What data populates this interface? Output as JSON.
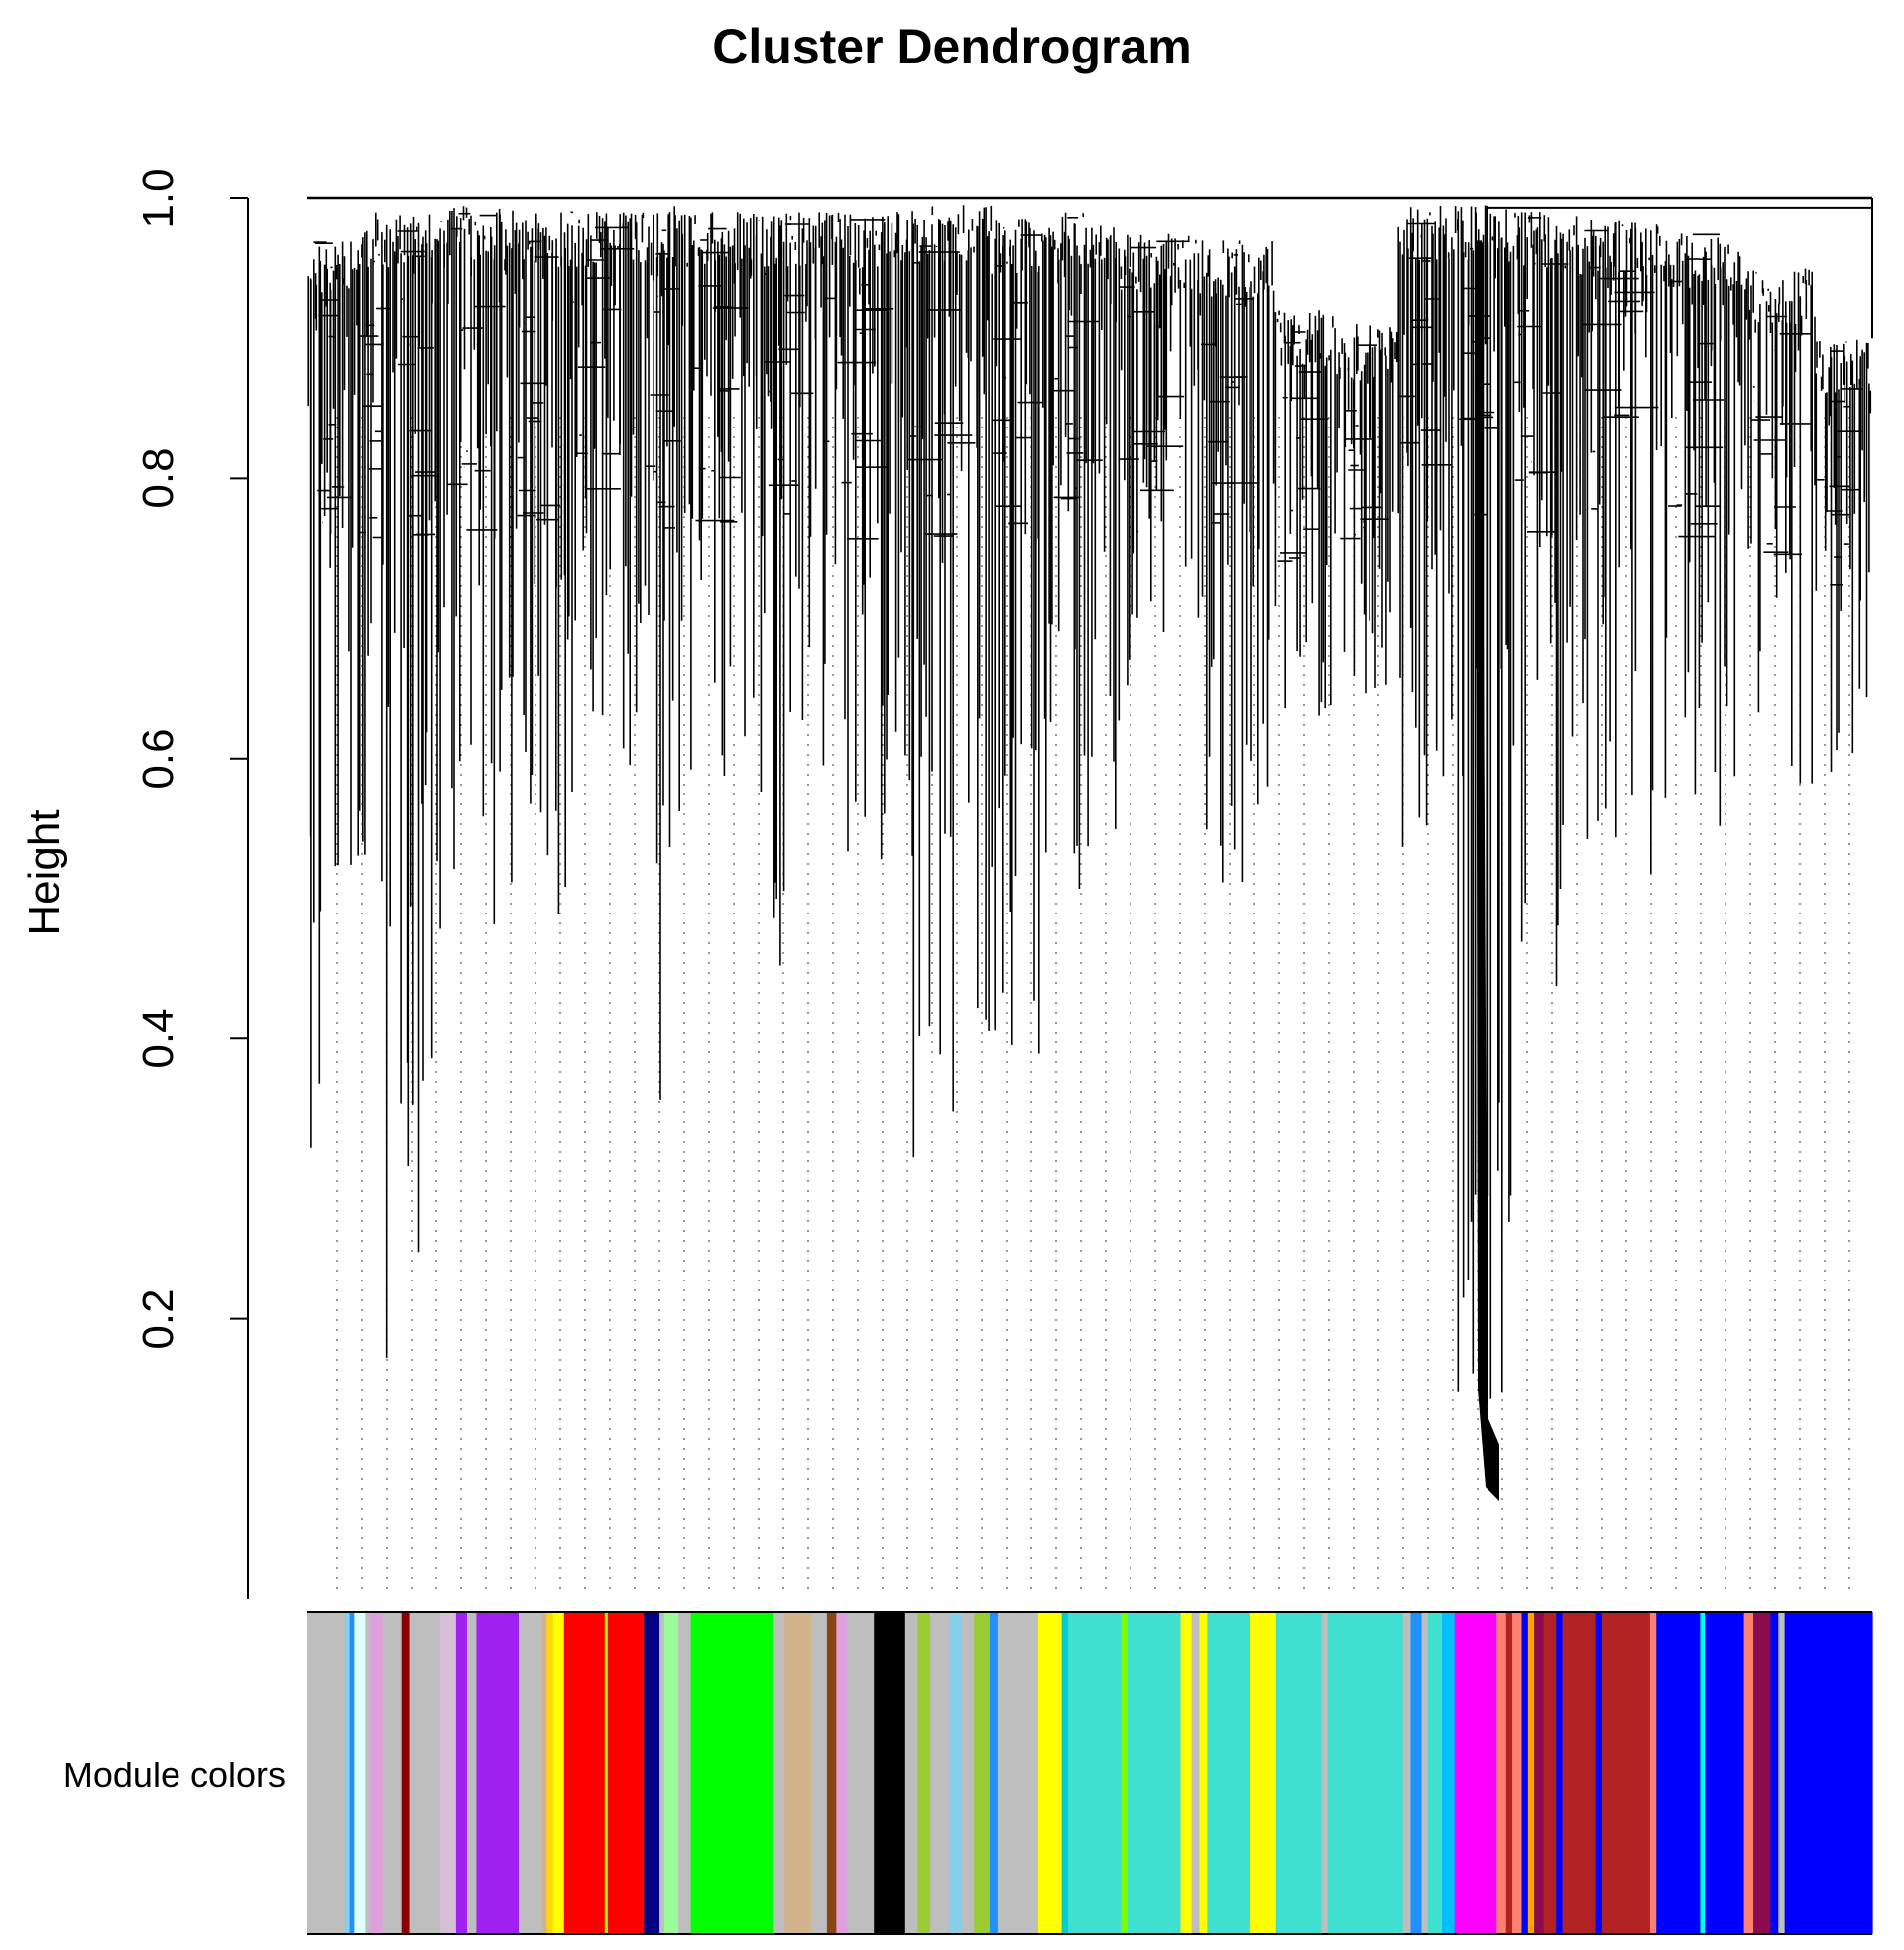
{
  "chart_data": {
    "type": "dendrogram",
    "title": "Cluster Dendrogram",
    "ylabel": "Height",
    "xlabel": "",
    "ylim": [
      0.0,
      1.0
    ],
    "yticks": [
      0.2,
      0.4,
      0.6,
      0.8,
      1.0
    ],
    "ytick_labels": [
      "0.2",
      "0.4",
      "0.6",
      "0.8",
      "1.0"
    ],
    "grid": false,
    "color_bar_label": "Module colors",
    "module_color_bands": [
      {
        "color": "#bebebe",
        "from": 0.0,
        "to": 0.024
      },
      {
        "color": "#87ceeb",
        "from": 0.024,
        "to": 0.027
      },
      {
        "color": "#1e90ff",
        "from": 0.027,
        "to": 0.03
      },
      {
        "color": "#e0ffff",
        "from": 0.03,
        "to": 0.037
      },
      {
        "color": "#bebebe",
        "from": 0.037,
        "to": 0.04
      },
      {
        "color": "#dda0dd",
        "from": 0.04,
        "to": 0.048
      },
      {
        "color": "#bebebe",
        "from": 0.048,
        "to": 0.06
      },
      {
        "color": "#8b0000",
        "from": 0.06,
        "to": 0.065
      },
      {
        "color": "#bebebe",
        "from": 0.065,
        "to": 0.085
      },
      {
        "color": "#d8bfd8",
        "from": 0.085,
        "to": 0.095
      },
      {
        "color": "#a020f0",
        "from": 0.095,
        "to": 0.102
      },
      {
        "color": "#bebebe",
        "from": 0.102,
        "to": 0.108
      },
      {
        "color": "#a020f0",
        "from": 0.108,
        "to": 0.135
      },
      {
        "color": "#bebebe",
        "from": 0.135,
        "to": 0.15
      },
      {
        "color": "#d2b48c",
        "from": 0.15,
        "to": 0.153
      },
      {
        "color": "#ffd700",
        "from": 0.153,
        "to": 0.157
      },
      {
        "color": "#ffff00",
        "from": 0.157,
        "to": 0.164
      },
      {
        "color": "#ff0000",
        "from": 0.164,
        "to": 0.19
      },
      {
        "color": "#7cfc00",
        "from": 0.19,
        "to": 0.192
      },
      {
        "color": "#ff0000",
        "from": 0.192,
        "to": 0.215
      },
      {
        "color": "#000080",
        "from": 0.215,
        "to": 0.225
      },
      {
        "color": "#bebebe",
        "from": 0.225,
        "to": 0.228
      },
      {
        "color": "#98fb98",
        "from": 0.228,
        "to": 0.237
      },
      {
        "color": "#bebebe",
        "from": 0.237,
        "to": 0.245
      },
      {
        "color": "#00ff00",
        "from": 0.245,
        "to": 0.298
      },
      {
        "color": "#bebebe",
        "from": 0.298,
        "to": 0.305
      },
      {
        "color": "#d2b48c",
        "from": 0.305,
        "to": 0.322
      },
      {
        "color": "#bebebe",
        "from": 0.322,
        "to": 0.332
      },
      {
        "color": "#8b4513",
        "from": 0.332,
        "to": 0.338
      },
      {
        "color": "#dda0dd",
        "from": 0.338,
        "to": 0.345
      },
      {
        "color": "#bebebe",
        "from": 0.345,
        "to": 0.362
      },
      {
        "color": "#000000",
        "from": 0.362,
        "to": 0.382
      },
      {
        "color": "#bebebe",
        "from": 0.382,
        "to": 0.39
      },
      {
        "color": "#9acd32",
        "from": 0.39,
        "to": 0.398
      },
      {
        "color": "#bebebe",
        "from": 0.398,
        "to": 0.41
      },
      {
        "color": "#87ceeb",
        "from": 0.41,
        "to": 0.418
      },
      {
        "color": "#bebebe",
        "from": 0.418,
        "to": 0.426
      },
      {
        "color": "#9acd32",
        "from": 0.426,
        "to": 0.436
      },
      {
        "color": "#1e90ff",
        "from": 0.436,
        "to": 0.441
      },
      {
        "color": "#bebebe",
        "from": 0.441,
        "to": 0.467
      },
      {
        "color": "#ffff00",
        "from": 0.467,
        "to": 0.482
      },
      {
        "color": "#00ced1",
        "from": 0.482,
        "to": 0.486
      },
      {
        "color": "#40e0d0",
        "from": 0.486,
        "to": 0.52
      },
      {
        "color": "#7cfc00",
        "from": 0.52,
        "to": 0.524
      },
      {
        "color": "#40e0d0",
        "from": 0.524,
        "to": 0.558
      },
      {
        "color": "#ffff00",
        "from": 0.558,
        "to": 0.565
      },
      {
        "color": "#bebebe",
        "from": 0.565,
        "to": 0.57
      },
      {
        "color": "#ffff00",
        "from": 0.57,
        "to": 0.575
      },
      {
        "color": "#40e0d0",
        "from": 0.575,
        "to": 0.602
      },
      {
        "color": "#ffff00",
        "from": 0.602,
        "to": 0.619
      },
      {
        "color": "#40e0d0",
        "from": 0.619,
        "to": 0.648
      },
      {
        "color": "#bebebe",
        "from": 0.648,
        "to": 0.652
      },
      {
        "color": "#40e0d0",
        "from": 0.652,
        "to": 0.7
      },
      {
        "color": "#bebebe",
        "from": 0.7,
        "to": 0.705
      },
      {
        "color": "#1e90ff",
        "from": 0.705,
        "to": 0.712
      },
      {
        "color": "#bebebe",
        "from": 0.712,
        "to": 0.716
      },
      {
        "color": "#40e0d0",
        "from": 0.716,
        "to": 0.725
      },
      {
        "color": "#00bfff",
        "from": 0.725,
        "to": 0.733
      },
      {
        "color": "#ff00ff",
        "from": 0.733,
        "to": 0.76
      },
      {
        "color": "#fa8072",
        "from": 0.76,
        "to": 0.766
      },
      {
        "color": "#b22222",
        "from": 0.766,
        "to": 0.77
      },
      {
        "color": "#fa8072",
        "from": 0.77,
        "to": 0.776
      },
      {
        "color": "#0000ff",
        "from": 0.776,
        "to": 0.78
      },
      {
        "color": "#ffa500",
        "from": 0.78,
        "to": 0.784
      },
      {
        "color": "#8b0a50",
        "from": 0.784,
        "to": 0.79
      },
      {
        "color": "#b22222",
        "from": 0.79,
        "to": 0.798
      },
      {
        "color": "#0000ff",
        "from": 0.798,
        "to": 0.802
      },
      {
        "color": "#b22222",
        "from": 0.802,
        "to": 0.823
      },
      {
        "color": "#0000ff",
        "from": 0.823,
        "to": 0.827
      },
      {
        "color": "#b22222",
        "from": 0.827,
        "to": 0.858
      },
      {
        "color": "#fa8072",
        "from": 0.858,
        "to": 0.862
      },
      {
        "color": "#0000ff",
        "from": 0.862,
        "to": 0.89
      },
      {
        "color": "#00ffff",
        "from": 0.89,
        "to": 0.893
      },
      {
        "color": "#0000ff",
        "from": 0.893,
        "to": 0.918
      },
      {
        "color": "#fa8072",
        "from": 0.918,
        "to": 0.924
      },
      {
        "color": "#8b0a50",
        "from": 0.924,
        "to": 0.935
      },
      {
        "color": "#0000ff",
        "from": 0.935,
        "to": 0.94
      },
      {
        "color": "#bebebe",
        "from": 0.94,
        "to": 0.944
      },
      {
        "color": "#0000ff",
        "from": 0.944,
        "to": 1.0
      }
    ]
  }
}
